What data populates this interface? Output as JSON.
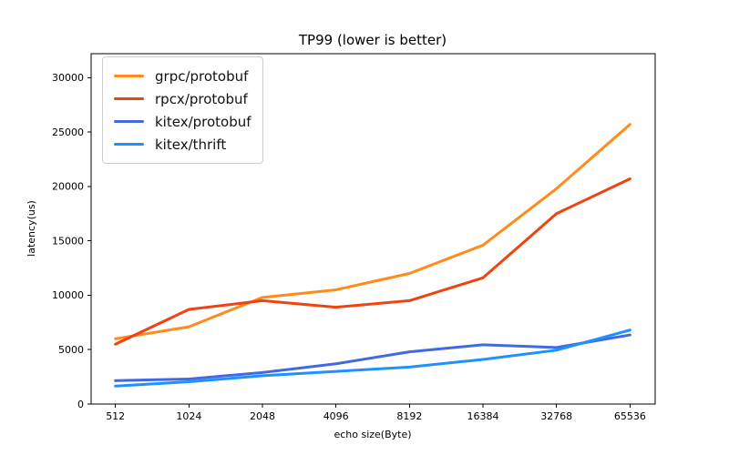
{
  "chart_data": {
    "type": "line",
    "title": "TP99 (lower is better)",
    "xlabel": "echo size(Byte)",
    "ylabel": "latency(us)",
    "categories": [
      "512",
      "1024",
      "2048",
      "4096",
      "8192",
      "16384",
      "32768",
      "65536"
    ],
    "series": [
      {
        "name": "grpc/protobuf",
        "color": "#ff8c1a",
        "values": [
          6000,
          7100,
          9800,
          10500,
          12000,
          14600,
          19800,
          25700
        ]
      },
      {
        "name": "rpcx/protobuf",
        "color": "#ee4411",
        "values": [
          5500,
          8700,
          9500,
          8900,
          9500,
          11600,
          17500,
          20700
        ]
      },
      {
        "name": "kitex/protobuf",
        "color": "#4169e1",
        "values": [
          2150,
          2300,
          2900,
          3700,
          4800,
          5450,
          5200,
          6350
        ]
      },
      {
        "name": "kitex/thrift",
        "color": "#1e90ff",
        "values": [
          1650,
          2050,
          2600,
          3000,
          3400,
          4100,
          4950,
          6800
        ]
      }
    ],
    "yticks": [
      0,
      5000,
      10000,
      15000,
      20000,
      25000,
      30000
    ],
    "ylim": [
      0,
      32200
    ],
    "grid": false,
    "legend_position": "upper left",
    "line_width": 3
  }
}
